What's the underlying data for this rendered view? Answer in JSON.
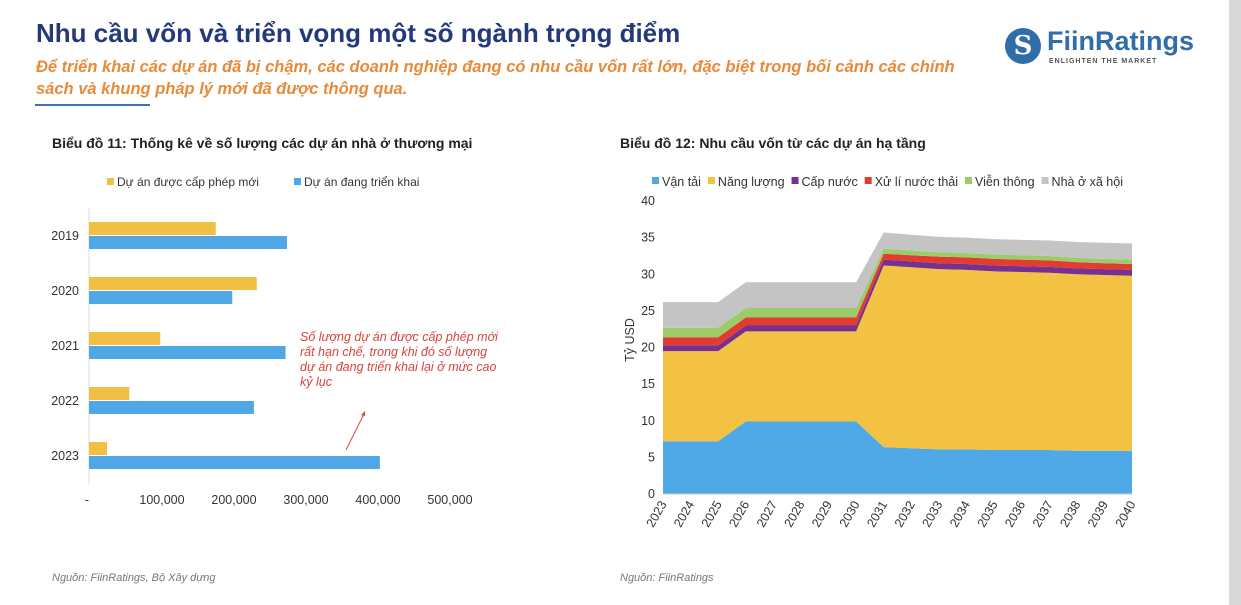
{
  "header": {
    "title": "Nhu cầu vốn và triển vọng một số ngành trọng điểm",
    "subtitle": "Để triển khai các dự án đã bị chậm, các doanh nghiệp đang có nhu cầu vốn rất lớn, đặc biệt trong bối cảnh các chính sách và khung pháp lý mới đã được thông qua.",
    "logo": {
      "name": "FiinRatings",
      "tagline": "ENLIGHTEN THE MARKET",
      "color": "#2f6ea8"
    }
  },
  "chart_data": [
    {
      "type": "bar",
      "orientation": "horizontal",
      "title": "Biểu đồ 11: Thống kê về số lượng các dự án nhà ở thương mại",
      "categories": [
        "2019",
        "2020",
        "2021",
        "2022",
        "2023"
      ],
      "series": [
        {
          "name": "Dự án được cấp phép mới",
          "color": "#f2bf45",
          "values": [
            176000,
            233000,
            99000,
            56000,
            25000
          ]
        },
        {
          "name": "Dự án đang triển khai",
          "color": "#4fa7e6",
          "values": [
            275000,
            199000,
            273000,
            229000,
            404000
          ]
        }
      ],
      "xlim": [
        0,
        500000
      ],
      "xticks": [
        "-",
        "100,000",
        "200,000",
        "300,000",
        "400,000",
        "500,000"
      ],
      "legend": "top",
      "annotation": "Số lượng dự án được cấp phép mới rất hạn chế, trong khi đó số lượng dự án đang triển khai lại ở mức cao kỷ lục",
      "source": "Nguồn: FiinRatings, Bộ Xây dựng"
    },
    {
      "type": "area",
      "stacked": true,
      "title": "Biểu đồ 12: Nhu cầu vốn từ các dự án hạ tầng",
      "ylabel": "Tỷ USD",
      "ylim": [
        0,
        40
      ],
      "yticks": [
        "0",
        "5",
        "10",
        "15",
        "20",
        "25",
        "30",
        "35",
        "40"
      ],
      "x": [
        "2023",
        "2024",
        "2025",
        "2026",
        "2027",
        "2028",
        "2029",
        "2030",
        "2031",
        "2032",
        "2033",
        "2034",
        "2035",
        "2036",
        "2037",
        "2038",
        "2039",
        "2040"
      ],
      "series": [
        {
          "name": "Vận tải",
          "color": "#4fa9e6",
          "values": [
            7.2,
            7.2,
            7.2,
            9.9,
            9.9,
            9.9,
            9.9,
            9.9,
            6.4,
            6.25,
            6.1,
            6.1,
            6.0,
            6.0,
            6.0,
            5.9,
            5.9,
            5.9
          ]
        },
        {
          "name": "Năng lượng",
          "color": "#f4c242",
          "values": [
            12.3,
            12.3,
            12.3,
            12.3,
            12.3,
            12.3,
            12.3,
            12.3,
            24.8,
            24.7,
            24.6,
            24.5,
            24.4,
            24.3,
            24.2,
            24.1,
            24.0,
            23.9
          ]
        },
        {
          "name": "Cấp nước",
          "color": "#76308f",
          "values": [
            0.8,
            0.8,
            0.8,
            0.8,
            0.8,
            0.8,
            0.8,
            0.8,
            0.8,
            0.8,
            0.8,
            0.8,
            0.8,
            0.8,
            0.8,
            0.8,
            0.8,
            0.8
          ]
        },
        {
          "name": "Xử lí nước thải",
          "color": "#e23b2f",
          "values": [
            1.1,
            1.1,
            1.1,
            1.1,
            1.1,
            1.1,
            1.1,
            1.1,
            0.8,
            0.85,
            0.9,
            0.9,
            0.9,
            0.9,
            0.9,
            0.85,
            0.8,
            0.8
          ]
        },
        {
          "name": "Viễn thông",
          "color": "#9ccc6a",
          "values": [
            1.3,
            1.3,
            1.3,
            1.3,
            1.3,
            1.3,
            1.3,
            1.3,
            0.7,
            0.65,
            0.6,
            0.6,
            0.6,
            0.6,
            0.6,
            0.6,
            0.6,
            0.6
          ]
        },
        {
          "name": "Nhà ở xã hội",
          "color": "#c4c4c4",
          "values": [
            3.5,
            3.5,
            3.5,
            3.5,
            3.5,
            3.5,
            3.5,
            3.5,
            2.2,
            2.15,
            2.1,
            2.1,
            2.1,
            2.1,
            2.1,
            2.15,
            2.2,
            2.2
          ]
        }
      ],
      "legend": "top",
      "source": "Nguồn: FiinRatings"
    }
  ]
}
